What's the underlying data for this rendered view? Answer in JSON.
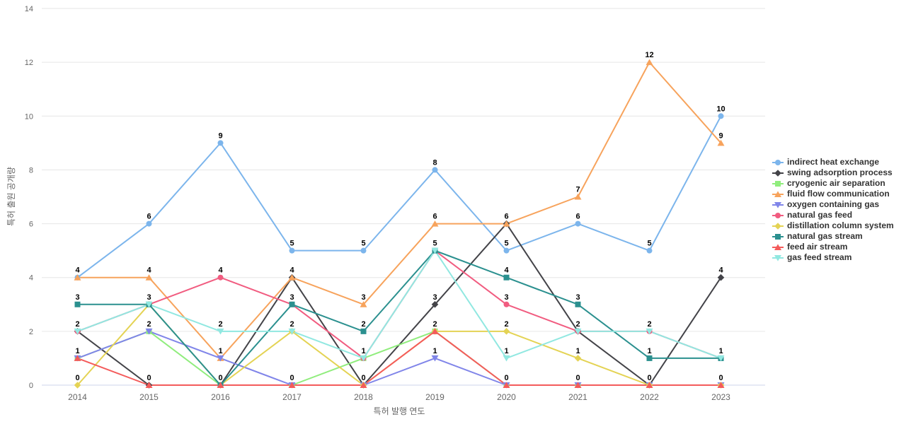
{
  "chart_data": {
    "type": "line",
    "title": "",
    "xlabel": "특허 발행 연도",
    "ylabel": "특허 출원 공개량",
    "categories": [
      "2014",
      "2015",
      "2016",
      "2017",
      "2018",
      "2019",
      "2020",
      "2021",
      "2022",
      "2023"
    ],
    "yticks": [
      0,
      2,
      4,
      6,
      8,
      10,
      12,
      14
    ],
    "ylim": [
      0,
      14
    ],
    "grid": "horizontal",
    "legend_position": "right",
    "data_labels": "on",
    "series": [
      {
        "name": "indirect heat exchange",
        "color": "#7cb5ec",
        "marker": "circle",
        "values": [
          4,
          6,
          9,
          5,
          5,
          8,
          5,
          6,
          5,
          10
        ]
      },
      {
        "name": "swing adsorption process",
        "color": "#434348",
        "marker": "diamond",
        "values": [
          2,
          0,
          0,
          4,
          0,
          3,
          6,
          2,
          0,
          4
        ]
      },
      {
        "name": "cryogenic air separation",
        "color": "#90ed7d",
        "marker": "square",
        "values": [
          1,
          2,
          0,
          0,
          1,
          2,
          0,
          0,
          0,
          0
        ]
      },
      {
        "name": "fluid flow communication",
        "color": "#f7a35c",
        "marker": "triangle",
        "values": [
          4,
          4,
          1,
          4,
          3,
          6,
          6,
          7,
          12,
          9
        ]
      },
      {
        "name": "oxygen containing gas",
        "color": "#8085e9",
        "marker": "triangle-down",
        "values": [
          1,
          2,
          1,
          0,
          0,
          1,
          0,
          0,
          0,
          0
        ]
      },
      {
        "name": "natural gas feed",
        "color": "#f15c80",
        "marker": "circle",
        "values": [
          2,
          3,
          4,
          3,
          1,
          5,
          3,
          2,
          2,
          1
        ]
      },
      {
        "name": "distillation column system",
        "color": "#e4d354",
        "marker": "diamond",
        "values": [
          0,
          3,
          0,
          2,
          0,
          2,
          2,
          1,
          0,
          0
        ]
      },
      {
        "name": "natural gas stream",
        "color": "#2b908f",
        "marker": "square",
        "values": [
          3,
          3,
          0,
          3,
          2,
          5,
          4,
          3,
          1,
          1
        ]
      },
      {
        "name": "feed air stream",
        "color": "#f45b5b",
        "marker": "triangle",
        "values": [
          1,
          0,
          0,
          0,
          0,
          2,
          0,
          0,
          0,
          0
        ]
      },
      {
        "name": "gas feed stream",
        "color": "#91e8e1",
        "marker": "triangle-down",
        "values": [
          2,
          3,
          2,
          2,
          1,
          5,
          1,
          2,
          2,
          1
        ]
      }
    ],
    "colors": {
      "background": "#ffffff",
      "grid": "#e6e6e6",
      "axis_line": "#ccd6eb",
      "tick_label": "#666666",
      "axis_title": "#666666",
      "legend_text": "#333333",
      "data_label": "#000000"
    }
  }
}
